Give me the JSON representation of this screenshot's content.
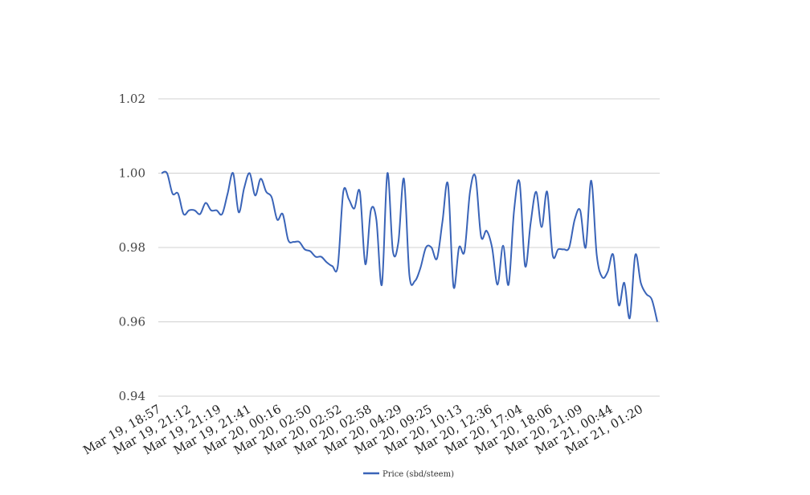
{
  "chart_data": {
    "type": "line",
    "title": "",
    "xlabel": "",
    "ylabel": "",
    "ylim": [
      0.94,
      1.02
    ],
    "yticks": [
      "0.94",
      "0.96",
      "0.98",
      "1.00",
      "1.02"
    ],
    "grid": true,
    "legend_position": "bottom",
    "x_tick_labels": [
      "Mar 19, 18:57",
      "Mar 19, 21:12",
      "Mar 19, 21:19",
      "Mar 19, 21:41",
      "Mar 20, 00:16",
      "Mar 20, 02:50",
      "Mar 20, 02:52",
      "Mar 20, 02:58",
      "Mar 20, 04:29",
      "Mar 20, 09:25",
      "Mar 20, 10:13",
      "Mar 20, 12:36",
      "Mar 20, 17:04",
      "Mar 20, 18:06",
      "Mar 20, 21:09",
      "Mar 21, 00:44",
      "Mar 21, 01:20"
    ],
    "series": [
      {
        "name": "Price (sbd/steem)",
        "color": "#3a64b8",
        "values": [
          1.0,
          1.0,
          0.9945,
          0.9945,
          0.989,
          0.99,
          0.99,
          0.989,
          0.992,
          0.99,
          0.99,
          0.989,
          0.9945,
          1.0,
          0.9895,
          0.996,
          1.0,
          0.994,
          0.9985,
          0.995,
          0.9935,
          0.9875,
          0.989,
          0.982,
          0.9815,
          0.9815,
          0.9795,
          0.979,
          0.9775,
          0.9775,
          0.976,
          0.975,
          0.975,
          0.995,
          0.993,
          0.9905,
          0.995,
          0.9755,
          0.99,
          0.9875,
          0.97,
          1.0,
          0.979,
          0.9815,
          0.9985,
          0.9725,
          0.971,
          0.9745,
          0.98,
          0.98,
          0.977,
          0.987,
          0.997,
          0.9695,
          0.98,
          0.979,
          0.995,
          0.999,
          0.983,
          0.9845,
          0.98,
          0.97,
          0.9805,
          0.97,
          0.99,
          0.9975,
          0.975,
          0.9865,
          0.995,
          0.9855,
          0.995,
          0.978,
          0.9795,
          0.9795,
          0.98,
          0.9875,
          0.99,
          0.98,
          0.998,
          0.978,
          0.972,
          0.9735,
          0.978,
          0.9645,
          0.9705,
          0.961,
          0.978,
          0.9705,
          0.9675,
          0.966,
          0.96
        ]
      }
    ]
  }
}
